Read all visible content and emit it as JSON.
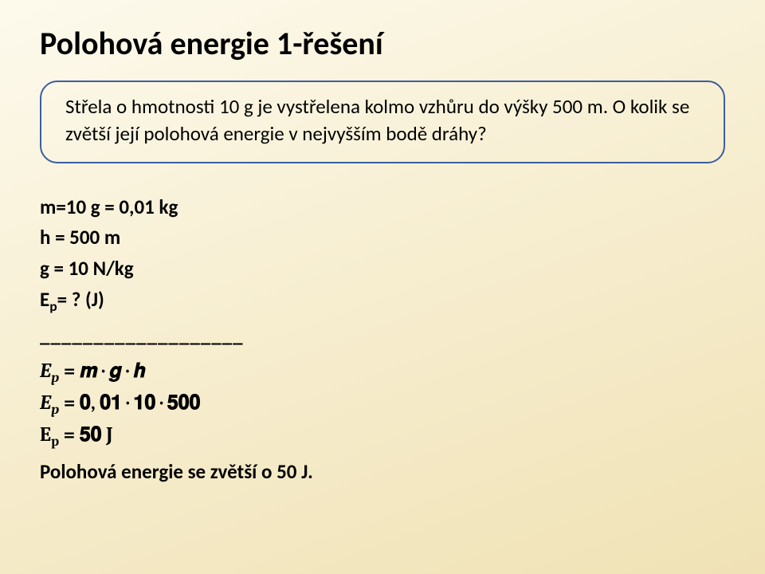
{
  "title": "Polohová energie 1-řešení",
  "problem": "Střela o hmotnosti 10 g je vystřelena kolmo vzhůru do výšky 500 m. O kolik se zvětší její polohová energie v nejvyšším bodě dráhy?",
  "given": {
    "line1": "m=10 g = 0,01 kg",
    "line2": "h = 500 m",
    "line3": "g = 10 N/kg",
    "line4_pre": "E",
    "line4_sub": "p",
    "line4_post": "= ? (J)"
  },
  "divider": "___________________",
  "formula": {
    "eq1_lhs_E": "E",
    "eq1_lhs_sub": "p",
    "eq1_rhs": " = 𝒎 · 𝒈 · 𝒉",
    "eq2_lhs_E": "E",
    "eq2_lhs_sub": "p",
    "eq2_rhs": " = 𝟎, 𝟎𝟏 · 𝟏𝟎 · 𝟓𝟎𝟎",
    "eq3_lhs_E": "E",
    "eq3_lhs_sub": "p",
    "eq3_rhs": " = 𝟓𝟎 J"
  },
  "answer": "Polohová energie se zvětší o 50 J.",
  "colors": {
    "box_border": "#3b5ea0",
    "text": "#000000",
    "bg_start": "#fdfaed",
    "bg_end": "#f0e2b5"
  },
  "fonts": {
    "title_size_pt": 30,
    "body_size_pt": 19,
    "formula_family": "Cambria Math"
  }
}
